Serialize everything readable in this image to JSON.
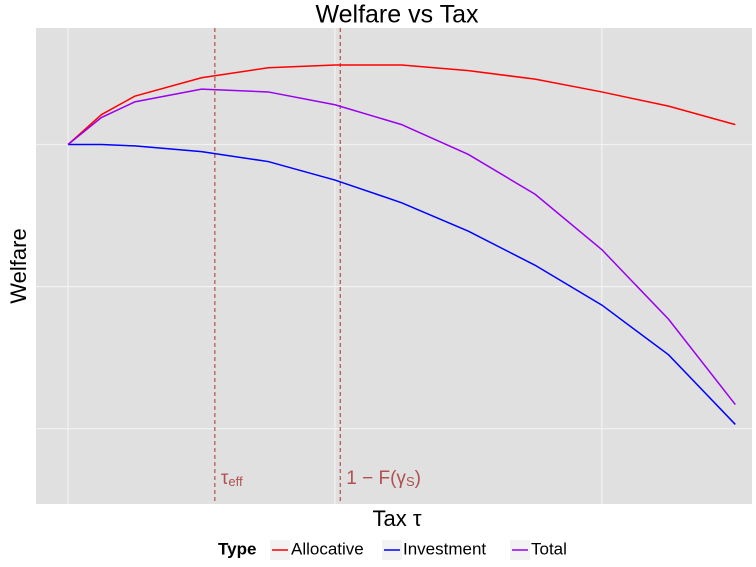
{
  "chart_data": {
    "type": "line",
    "title": "Welfare vs Tax",
    "xlabel": "Tax τ",
    "ylabel": "Welfare",
    "x": [
      0,
      0.05,
      0.1,
      0.2,
      0.3,
      0.4,
      0.5,
      0.6,
      0.7,
      0.8,
      0.9,
      1
    ],
    "series": [
      {
        "name": "Allocative",
        "color": "#ff0000",
        "values": [
          0,
          0.21,
          0.34,
          0.47,
          0.54,
          0.56,
          0.56,
          0.52,
          0.46,
          0.37,
          0.27,
          0.14
        ]
      },
      {
        "name": "Investment",
        "color": "#0000ff",
        "values": [
          0,
          0,
          -0.01,
          -0.05,
          -0.12,
          -0.25,
          -0.41,
          -0.61,
          -0.85,
          -1.13,
          -1.48,
          -1.97
        ]
      },
      {
        "name": "Total",
        "color": "#9900ee",
        "values": [
          0,
          0.19,
          0.3,
          0.39,
          0.37,
          0.28,
          0.14,
          -0.07,
          -0.35,
          -0.74,
          -1.23,
          -1.83
        ]
      }
    ],
    "xlim": [
      -0.048,
      1.025
    ],
    "ylim": [
      -2.53,
      0.82
    ],
    "xticks": [
      0,
      0.4,
      0.8
    ],
    "yticks": [
      -2,
      -1,
      0
    ],
    "grid": true,
    "legend_title": "Type",
    "legend_position": "bottom",
    "annotations": [
      {
        "x": 0.22,
        "label": "τ",
        "sub": "eff",
        "color": "#b05050"
      },
      {
        "x": 0.408,
        "label": "1 − F(γ",
        "sub": "S",
        "tail": ")",
        "color": "#b05050"
      }
    ]
  }
}
